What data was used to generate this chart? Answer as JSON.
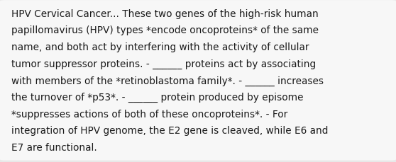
{
  "background_color": "#e8e8e8",
  "box_color": "#f7f7f7",
  "text_color": "#1a1a1a",
  "font_size": 9.8,
  "figwidth": 5.58,
  "figheight": 2.3,
  "dpi": 100,
  "lines": [
    "HPV Cervical Cancer... These two genes of the high-risk human",
    "papillomavirus (HPV) types *encode oncoproteins* of the same",
    "name, and both act by interfering with the activity of cellular",
    "tumor suppressor proteins. - ______ proteins act by associating",
    "with members of the *retinoblastoma family*. - ______ increases",
    "the turnover of *p53*. - ______ protein produced by episome",
    "*suppresses actions of both of these oncoproteins*. - For",
    "integration of HPV genome, the E2 gene is cleaved, while E6 and",
    "E7 are functional."
  ]
}
